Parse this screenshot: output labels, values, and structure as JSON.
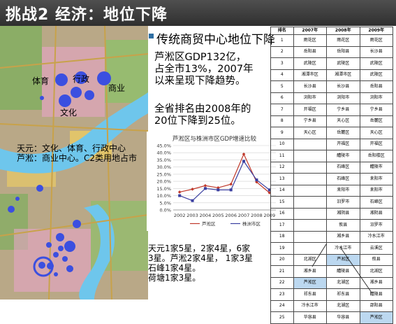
{
  "header": {
    "title": "挑战2 经济：地位下降"
  },
  "bullet": {
    "title": "传统商贸中心地位下降"
  },
  "paragraphs": {
    "p1": "芦淞区GDP132亿，\n占全市13%，2007年\n以来呈现下降趋势。",
    "p2": "全省排名由2008年的\n20位下降到25位。"
  },
  "map": {
    "labels": {
      "tiyu": "体育",
      "xingzheng": "行政",
      "shangye": "商业",
      "wenhua": "文化"
    },
    "caption": "天元：文化、体育、行政中心\n芦淞：商业中心。C2类用地占市"
  },
  "bottom_text": "天元1家5星，2家4星，6家\n3星。芦淞2家4星， 1家3星\n石峰1家4星。\n荷塘1家3星。",
  "colors": {
    "title_bar": "#3a3a3a",
    "lusong": "#c0392b",
    "zhuzhou": "#3a3fa0",
    "highlight": "#bcd8f0",
    "bullet": "#2f6fa3"
  },
  "chart_data": {
    "type": "line",
    "title": "芦淞区与株洲市区GDP增速比较",
    "categories": [
      "2002",
      "2003",
      "2004",
      "2005",
      "2006",
      "2007",
      "2008",
      "2009"
    ],
    "series": [
      {
        "name": "芦淞区",
        "values": [
          12.5,
          14.5,
          17.0,
          15.5,
          18.0,
          39.0,
          19.5,
          12.0
        ]
      },
      {
        "name": "株洲市区",
        "values": [
          10.0,
          6.5,
          15.0,
          14.0,
          14.0,
          34.0,
          21.0,
          14.0
        ]
      }
    ],
    "ylim": [
      0,
      45
    ],
    "yticks": [
      "0.0%",
      "5.0%",
      "10.0%",
      "15.0%",
      "20.0%",
      "25.0%",
      "30.0%",
      "35.0%",
      "40.0%",
      "45.0%"
    ],
    "grid": true,
    "legend": "bottom"
  },
  "table": {
    "headers": [
      "排名",
      "2007年",
      "2008年",
      "2009年"
    ],
    "rows": [
      [
        "1",
        "雨花区",
        "雨花区",
        "雨花区"
      ],
      [
        "2",
        "岳阳县",
        "岳阳县",
        "长沙县"
      ],
      [
        "3",
        "武陵区",
        "武陵区",
        "武陵区"
      ],
      [
        "4",
        "湘潭市区",
        "湘潭市区",
        "武陵区"
      ],
      [
        "5",
        "长沙县",
        "长沙县",
        "岳阳县"
      ],
      [
        "6",
        "浏阳市",
        "浏阳市",
        "浏阳市"
      ],
      [
        "7",
        "开福区",
        "宁乡县",
        "宁乡县"
      ],
      [
        "8",
        "宁乡县",
        "天心区",
        "岳麓区"
      ],
      [
        "9",
        "天心区",
        "岳麓区",
        "天心区"
      ],
      [
        "10",
        "",
        "开福区",
        "开福区"
      ],
      [
        "11",
        "",
        "醴陵市",
        "岳阳楼区"
      ],
      [
        "12",
        "",
        "石峰区",
        "醴陵市"
      ],
      [
        "13",
        "",
        "石峰区",
        "耒阳市"
      ],
      [
        "14",
        "",
        "耒阳市",
        "耒阳市"
      ],
      [
        "15",
        "",
        "汨罗市",
        "石峰区"
      ],
      [
        "16",
        "",
        "湘阴县",
        "湘阴县"
      ],
      [
        "17",
        "",
        "攸县",
        "汨罗市"
      ],
      [
        "18",
        "",
        "湘乡县",
        "冷水江市"
      ],
      [
        "19",
        "",
        "冷水江市",
        "云溪区"
      ],
      [
        "20",
        "北湖区",
        "芦淞区",
        "攸县"
      ],
      [
        "21",
        "湘乡县",
        "醴陵县",
        "北湖区"
      ],
      [
        "22",
        "芦淞区",
        "北湖区",
        "湘乡县"
      ],
      [
        "23",
        "祁东县",
        "祁东县",
        "醴陵县"
      ],
      [
        "24",
        "冷水江市",
        "北湖区",
        "邵阳县"
      ],
      [
        "25",
        "华容县",
        "华容县",
        "芦淞区"
      ]
    ],
    "highlights": [
      {
        "row": 19,
        "col": 2
      },
      {
        "row": 21,
        "col": 1
      },
      {
        "row": 24,
        "col": 3
      }
    ]
  }
}
